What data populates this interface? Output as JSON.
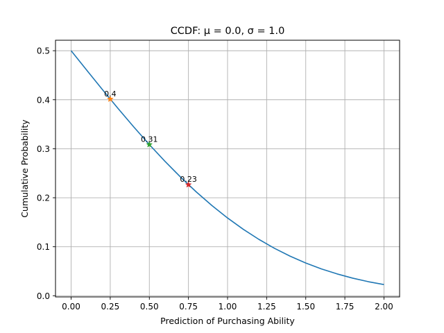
{
  "chart_data": {
    "type": "line",
    "title": "CCDF: μ = 0.0, σ = 1.0",
    "xlabel": "Prediction of Purchasing Ability",
    "ylabel": "Cumulative Probability",
    "xlim": [
      -0.1,
      2.1
    ],
    "ylim": [
      -0.0024,
      0.5214
    ],
    "x_ticks": [
      {
        "value": 0.0,
        "label": "0.00"
      },
      {
        "value": 0.25,
        "label": "0.25"
      },
      {
        "value": 0.5,
        "label": "0.50"
      },
      {
        "value": 0.75,
        "label": "0.75"
      },
      {
        "value": 1.0,
        "label": "1.00"
      },
      {
        "value": 1.25,
        "label": "1.25"
      },
      {
        "value": 1.5,
        "label": "1.50"
      },
      {
        "value": 1.75,
        "label": "1.75"
      },
      {
        "value": 2.0,
        "label": "2.00"
      }
    ],
    "y_ticks": [
      {
        "value": 0.0,
        "label": "0.0"
      },
      {
        "value": 0.1,
        "label": "0.1"
      },
      {
        "value": 0.2,
        "label": "0.2"
      },
      {
        "value": 0.3,
        "label": "0.3"
      },
      {
        "value": 0.4,
        "label": "0.4"
      },
      {
        "value": 0.5,
        "label": "0.5"
      }
    ],
    "grid": true,
    "series": [
      {
        "color": "#1f77b4",
        "x": [
          0.0,
          0.1,
          0.2,
          0.3,
          0.4,
          0.5,
          0.6,
          0.7,
          0.8,
          0.9,
          1.0,
          1.1,
          1.2,
          1.3,
          1.4,
          1.5,
          1.6,
          1.7,
          1.8,
          1.9,
          2.0
        ],
        "y": [
          0.5,
          0.4602,
          0.4207,
          0.3821,
          0.3446,
          0.3085,
          0.2743,
          0.242,
          0.2119,
          0.1841,
          0.1587,
          0.1357,
          0.1151,
          0.0968,
          0.0808,
          0.0668,
          0.0548,
          0.0446,
          0.0359,
          0.0287,
          0.0228
        ]
      }
    ],
    "highlighted_points": [
      {
        "x": 0.25,
        "y": 0.4013,
        "label": "0.4",
        "color": "#ff7f0e"
      },
      {
        "x": 0.5,
        "y": 0.3085,
        "label": "0.31",
        "color": "#2ca02c"
      },
      {
        "x": 0.75,
        "y": 0.2266,
        "label": "0.23",
        "color": "#d62728"
      }
    ]
  }
}
